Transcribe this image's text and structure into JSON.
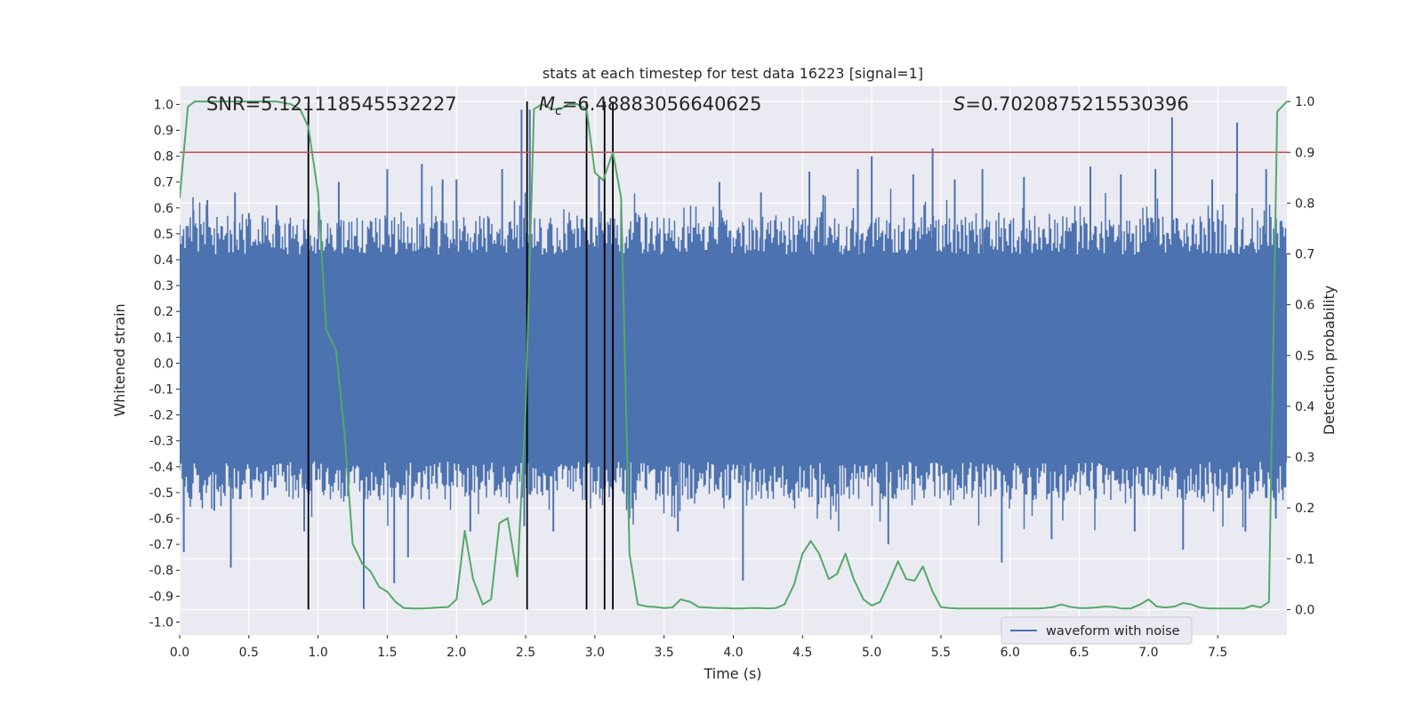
{
  "chart_data": {
    "type": "line",
    "title": "stats at each timestep for test data 16223 [signal=1]",
    "xlabel": "Time (s)",
    "ylabel": "Whitened strain",
    "ylabel_right": "Detection probability",
    "xlim": [
      0,
      8
    ],
    "ylim": [
      -1.05,
      1.07
    ],
    "ylim_right": [
      -0.05,
      1.03
    ],
    "grid": true,
    "legend_position": "bottom-right",
    "x_ticks": [
      "0.0",
      "0.5",
      "1.0",
      "1.5",
      "2.0",
      "2.5",
      "3.0",
      "3.5",
      "4.0",
      "4.5",
      "5.0",
      "5.5",
      "6.0",
      "6.5",
      "7.0",
      "7.5"
    ],
    "y_ticks": [
      "1.0",
      "0.9",
      "0.8",
      "0.7",
      "0.6",
      "0.5",
      "0.4",
      "0.3",
      "0.2",
      "0.1",
      "0.0",
      "-0.1",
      "-0.2",
      "-0.3",
      "-0.4",
      "-0.5",
      "-0.6",
      "-0.7",
      "-0.8",
      "-0.9",
      "-1.0"
    ],
    "y_ticks_right": [
      "1.0",
      "0.9",
      "0.8",
      "0.7",
      "0.6",
      "0.5",
      "0.4",
      "0.3",
      "0.2",
      "0.1",
      "0.0"
    ],
    "annotations": {
      "snr": "SNR=5.121118545532227",
      "mc_symbol": "M",
      "mc_sub": "c",
      "mc_value": "=6.48883056640625",
      "s_symbol": "S",
      "s_value": "=0.7020875215530396"
    },
    "threshold": {
      "axis": "right",
      "y": 0.9,
      "color": "#c44e52"
    },
    "vertical_lines": [
      0.93,
      2.51,
      2.94,
      3.07,
      3.13
    ],
    "series": [
      {
        "name": "waveform with noise",
        "axis": "left",
        "color": "#4c72b0",
        "style": "noise",
        "band": [
          -0.38,
          0.42
        ],
        "spikes": [
          {
            "x": 0.03,
            "y": -0.73
          },
          {
            "x": 0.06,
            "y": 0.53
          },
          {
            "x": 0.1,
            "y": 0.59
          },
          {
            "x": 0.2,
            "y": 0.63
          },
          {
            "x": 0.25,
            "y": -0.57
          },
          {
            "x": 0.37,
            "y": -0.79
          },
          {
            "x": 0.4,
            "y": 0.66
          },
          {
            "x": 0.5,
            "y": 0.58
          },
          {
            "x": 0.6,
            "y": 0.57
          },
          {
            "x": 0.7,
            "y": 0.61
          },
          {
            "x": 0.9,
            "y": -0.65
          },
          {
            "x": 1.15,
            "y": 0.7
          },
          {
            "x": 1.33,
            "y": -0.95
          },
          {
            "x": 1.5,
            "y": 0.75
          },
          {
            "x": 1.55,
            "y": -0.85
          },
          {
            "x": 1.65,
            "y": -0.75
          },
          {
            "x": 1.75,
            "y": 0.77
          },
          {
            "x": 1.9,
            "y": 0.71
          },
          {
            "x": 2.0,
            "y": 0.71
          },
          {
            "x": 2.1,
            "y": -0.65
          },
          {
            "x": 2.33,
            "y": 0.75
          },
          {
            "x": 2.47,
            "y": 0.98
          },
          {
            "x": 2.49,
            "y": -0.63
          },
          {
            "x": 2.53,
            "y": 0.98
          },
          {
            "x": 2.7,
            "y": -0.65
          },
          {
            "x": 3.03,
            "y": 0.72
          },
          {
            "x": 3.19,
            "y": 0.62
          },
          {
            "x": 3.25,
            "y": -0.6
          },
          {
            "x": 3.6,
            "y": -0.65
          },
          {
            "x": 3.9,
            "y": 0.7
          },
          {
            "x": 4.07,
            "y": -0.84
          },
          {
            "x": 4.2,
            "y": 0.66
          },
          {
            "x": 4.55,
            "y": 0.74
          },
          {
            "x": 4.65,
            "y": 0.65
          },
          {
            "x": 4.9,
            "y": 0.75
          },
          {
            "x": 5.0,
            "y": 0.8
          },
          {
            "x": 5.12,
            "y": -0.7
          },
          {
            "x": 5.3,
            "y": 0.73
          },
          {
            "x": 5.44,
            "y": 0.83
          },
          {
            "x": 5.6,
            "y": 0.71
          },
          {
            "x": 5.8,
            "y": 0.75
          },
          {
            "x": 5.94,
            "y": -0.77
          },
          {
            "x": 6.1,
            "y": 0.72
          },
          {
            "x": 6.3,
            "y": -0.68
          },
          {
            "x": 6.58,
            "y": 0.76
          },
          {
            "x": 6.8,
            "y": 0.73
          },
          {
            "x": 6.9,
            "y": -0.65
          },
          {
            "x": 7.05,
            "y": 0.75
          },
          {
            "x": 7.17,
            "y": 0.95
          },
          {
            "x": 7.25,
            "y": -0.72
          },
          {
            "x": 7.46,
            "y": 0.71
          },
          {
            "x": 7.64,
            "y": 0.93
          },
          {
            "x": 7.7,
            "y": -0.65
          },
          {
            "x": 7.85,
            "y": 0.75
          },
          {
            "x": 7.92,
            "y": -0.6
          }
        ]
      },
      {
        "name": "",
        "axis": "right",
        "color": "#55a868",
        "x": [
          0.0,
          0.06,
          0.11,
          0.25,
          0.5,
          0.7,
          0.8,
          0.87,
          0.93,
          1.0,
          1.06,
          1.13,
          1.19,
          1.25,
          1.32,
          1.38,
          1.44,
          1.5,
          1.56,
          1.62,
          1.69,
          1.75,
          1.81,
          1.87,
          1.94,
          2.0,
          2.06,
          2.12,
          2.19,
          2.25,
          2.31,
          2.37,
          2.44,
          2.5,
          2.56,
          2.62,
          2.69,
          2.75,
          2.81,
          2.87,
          2.94,
          3.0,
          3.06,
          3.13,
          3.19,
          3.25,
          3.31,
          3.38,
          3.44,
          3.5,
          3.56,
          3.62,
          3.69,
          3.75,
          3.81,
          3.87,
          3.94,
          4.0,
          4.06,
          4.12,
          4.19,
          4.25,
          4.31,
          4.37,
          4.44,
          4.5,
          4.56,
          4.62,
          4.69,
          4.75,
          4.81,
          4.87,
          4.94,
          5.0,
          5.06,
          5.12,
          5.19,
          5.25,
          5.31,
          5.37,
          5.44,
          5.5,
          5.56,
          5.62,
          5.69,
          5.75,
          5.81,
          5.87,
          5.94,
          6.0,
          6.06,
          6.12,
          6.19,
          6.25,
          6.31,
          6.37,
          6.44,
          6.5,
          6.56,
          6.62,
          6.69,
          6.75,
          6.81,
          6.87,
          6.94,
          7.0,
          7.06,
          7.12,
          7.19,
          7.25,
          7.31,
          7.37,
          7.44,
          7.5,
          7.56,
          7.62,
          7.69,
          7.75,
          7.81,
          7.87,
          7.93,
          8.0
        ],
        "values": [
          0.81,
          0.99,
          1.0,
          1.0,
          1.0,
          1.0,
          0.995,
          0.985,
          0.95,
          0.82,
          0.55,
          0.51,
          0.35,
          0.13,
          0.09,
          0.075,
          0.045,
          0.035,
          0.015,
          0.003,
          0.002,
          0.002,
          0.003,
          0.004,
          0.005,
          0.02,
          0.155,
          0.06,
          0.01,
          0.02,
          0.17,
          0.18,
          0.065,
          0.4,
          0.985,
          0.995,
          0.985,
          0.985,
          0.995,
          0.995,
          0.985,
          0.86,
          0.845,
          0.9,
          0.81,
          0.11,
          0.01,
          0.006,
          0.005,
          0.003,
          0.004,
          0.02,
          0.015,
          0.005,
          0.004,
          0.003,
          0.003,
          0.002,
          0.002,
          0.003,
          0.003,
          0.002,
          0.003,
          0.01,
          0.05,
          0.11,
          0.135,
          0.11,
          0.06,
          0.07,
          0.11,
          0.06,
          0.02,
          0.008,
          0.015,
          0.05,
          0.095,
          0.06,
          0.057,
          0.085,
          0.035,
          0.005,
          0.003,
          0.002,
          0.002,
          0.002,
          0.002,
          0.002,
          0.002,
          0.002,
          0.002,
          0.002,
          0.002,
          0.003,
          0.005,
          0.01,
          0.005,
          0.003,
          0.003,
          0.004,
          0.006,
          0.005,
          0.002,
          0.002,
          0.01,
          0.02,
          0.006,
          0.004,
          0.006,
          0.013,
          0.01,
          0.004,
          0.002,
          0.002,
          0.002,
          0.002,
          0.002,
          0.008,
          0.004,
          0.015,
          0.98,
          1.0
        ]
      }
    ]
  }
}
